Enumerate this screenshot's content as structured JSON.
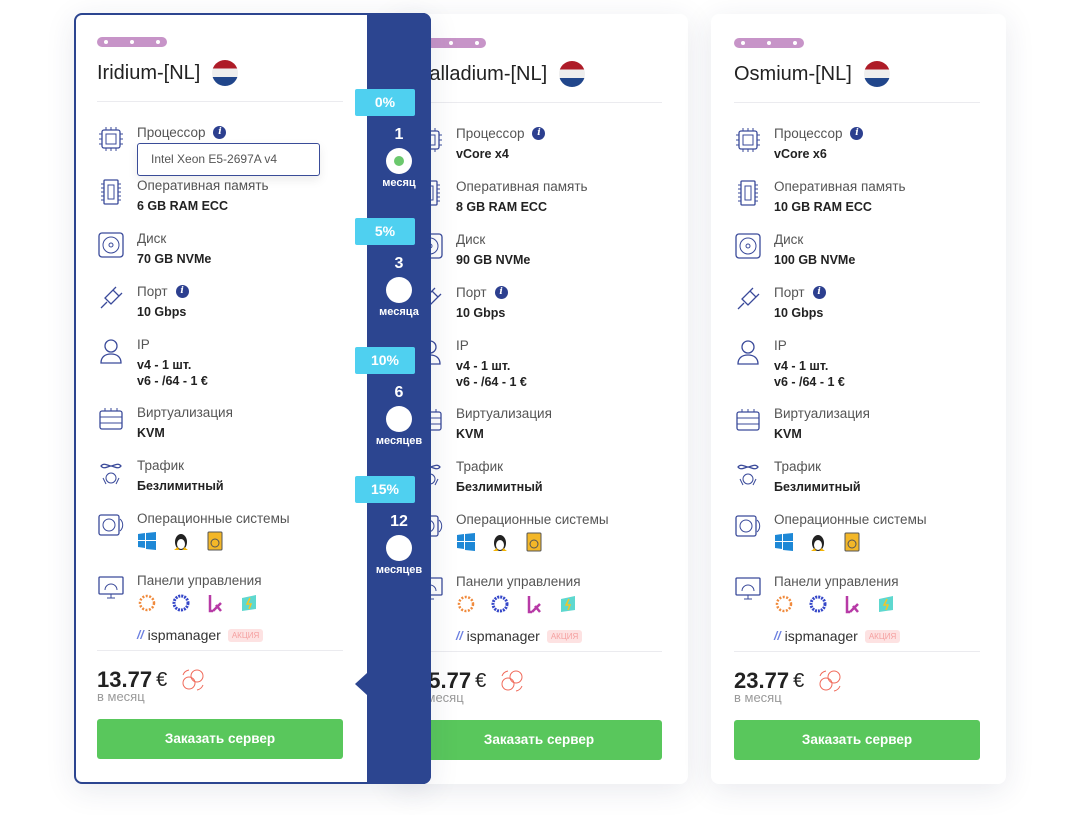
{
  "colors": {
    "accent": "#2c4590",
    "badge": "#4fd0f0",
    "button": "#59c75c",
    "label": "#c794c8"
  },
  "labels": {
    "cpu": "Процессор",
    "ram": "Оперативная память",
    "disk": "Диск",
    "port": "Порт",
    "ip": "IP",
    "virt": "Виртуализация",
    "traffic": "Трафик",
    "os": "Операционные системы",
    "panels": "Панели управления",
    "per_month": "в месяц",
    "order": "Заказать сервер",
    "ispmanager": "ispmanager",
    "promo": "АКЦИЯ",
    "currency": "€"
  },
  "cards": [
    {
      "name": "Iridium-[NL]",
      "cpu": "Intel Xeon E5-2697A v4",
      "ram": "6 GB RAM ECC",
      "disk": "70 GB NVMe",
      "port": "10 Gbps",
      "ip_v4": "v4 - 1 шт.",
      "ip_v6": "v6 - /64 - 1 €",
      "virt": "KVM",
      "traffic": "Безлимитный",
      "price": "13.77"
    },
    {
      "name": "Palladium-[NL]",
      "cpu": "vCore x4",
      "ram": "8 GB RAM ECC",
      "disk": "90 GB NVMe",
      "port": "10 Gbps",
      "ip_v4": "v4 - 1 шт.",
      "ip_v6": "v6 - /64 - 1 €",
      "virt": "KVM",
      "traffic": "Безлимитный",
      "price": "15.77"
    },
    {
      "name": "Osmium-[NL]",
      "cpu": "vCore x6",
      "ram": "10 GB RAM ECC",
      "disk": "100 GB NVMe",
      "port": "10 Gbps",
      "ip_v4": "v4 - 1 шт.",
      "ip_v6": "v6 - /64 - 1 €",
      "virt": "KVM",
      "traffic": "Безлимитный",
      "price": "23.77"
    }
  ],
  "tooltip": {
    "text": "Intel Xeon E5-2697A v4"
  },
  "terms": [
    {
      "discount": "0%",
      "months": "1",
      "unit": "месяц",
      "selected": true
    },
    {
      "discount": "5%",
      "months": "3",
      "unit": "месяца",
      "selected": false
    },
    {
      "discount": "10%",
      "months": "6",
      "unit": "месяцев",
      "selected": false
    },
    {
      "discount": "15%",
      "months": "12",
      "unit": "месяцев",
      "selected": false
    }
  ]
}
